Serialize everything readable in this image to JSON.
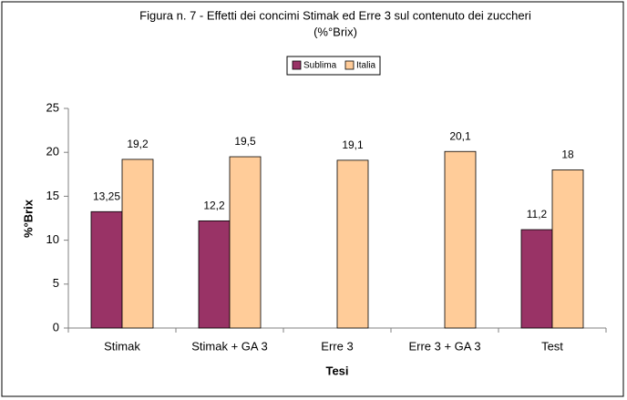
{
  "chart_data": {
    "type": "bar",
    "title": "Figura n. 7 - Effetti dei concimi Stimak ed Erre 3 sul contenuto dei zuccheri",
    "subtitle": "(%°Brix)",
    "x_label": "Tesi",
    "y_label": "%°Brix",
    "categories": [
      "Stimak",
      "Stimak + GA 3",
      "Erre 3",
      "Erre 3 + GA 3",
      "Test"
    ],
    "series": [
      {
        "name": "Sublima",
        "color": "#993366",
        "values": [
          13.25,
          12.2,
          null,
          null,
          11.2
        ],
        "value_labels": [
          "13,25",
          "12,2",
          null,
          null,
          "11,2"
        ]
      },
      {
        "name": "Italia",
        "color": "#ffcc99",
        "values": [
          19.2,
          19.5,
          19.1,
          20.1,
          18
        ],
        "value_labels": [
          "19,2",
          "19,5",
          "19,1",
          "20,1",
          "18"
        ]
      }
    ],
    "ylim": [
      0,
      25
    ],
    "yticks": [
      0,
      5,
      10,
      15,
      20,
      25
    ]
  }
}
